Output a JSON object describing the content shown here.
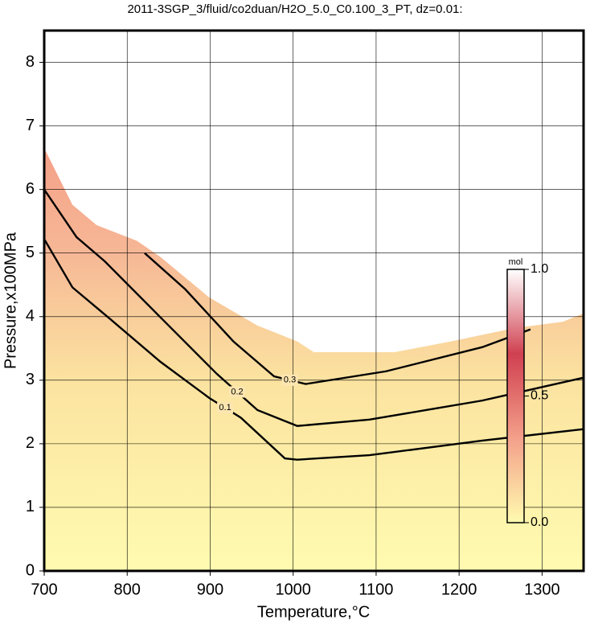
{
  "chart_data": {
    "type": "contour",
    "title": "2011-3SGP_3/fluid/co2duan/H2O_5.0_C0.100_3_PT, dz=0.01:",
    "x_label": "Temperature,°C",
    "y_label": "Pressure,x100MPa",
    "xlim": [
      700,
      1350
    ],
    "ylim": [
      0,
      8.5
    ],
    "xticks": [
      700,
      800,
      900,
      1000,
      1100,
      1200,
      1300
    ],
    "yticks": [
      0,
      1,
      2,
      3,
      4,
      5,
      6,
      7,
      8
    ],
    "grid": true,
    "boundary": {
      "color": "#fffaa8",
      "x": [
        700,
        710,
        734,
        763,
        812,
        840,
        899,
        957,
        1005,
        1025,
        1122,
        1190,
        1267,
        1325,
        1350
      ],
      "y": [
        6.65,
        6.39,
        5.76,
        5.44,
        5.19,
        4.94,
        4.3,
        3.86,
        3.61,
        3.44,
        3.44,
        3.61,
        3.82,
        3.92,
        4.05
      ]
    },
    "series": [
      {
        "name": "0.1",
        "color": "#000000",
        "x": [
          700,
          734,
          777,
          840,
          899,
          937,
          990,
          1005,
          1092,
          1228,
          1350
        ],
        "y": [
          5.22,
          4.46,
          3.99,
          3.29,
          2.72,
          2.41,
          1.77,
          1.75,
          1.82,
          2.05,
          2.23
        ]
      },
      {
        "name": "0.2",
        "color": "#000000",
        "x": [
          700,
          739,
          773,
          840,
          908,
          957,
          1005,
          1092,
          1228,
          1350
        ],
        "y": [
          6.0,
          5.25,
          4.87,
          3.99,
          3.1,
          2.53,
          2.28,
          2.38,
          2.68,
          3.04
        ]
      },
      {
        "name": "0.3",
        "color": "#000000",
        "x": [
          821,
          870,
          928,
          977,
          1015,
          1112,
          1228,
          1286
        ],
        "y": [
          5.0,
          4.43,
          3.61,
          3.06,
          2.94,
          3.14,
          3.52,
          3.8
        ]
      }
    ],
    "colorbar": {
      "label": "mol",
      "lim": [
        0,
        1
      ],
      "ticks": [
        {
          "value": 0,
          "label": "0.0"
        },
        {
          "value": 0.5,
          "label": "0.5"
        },
        {
          "value": 1,
          "label": "1.0"
        }
      ],
      "colors": [
        "#fffbb0",
        "#f4a08a",
        "#d04050",
        "#ffffff"
      ]
    }
  }
}
